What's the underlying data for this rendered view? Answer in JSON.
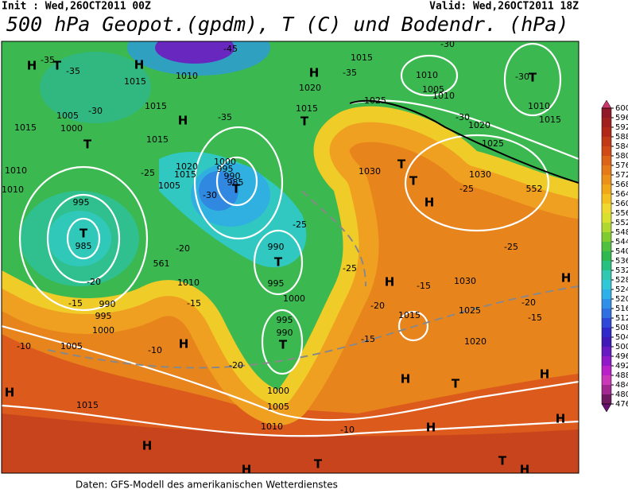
{
  "header": {
    "init": "Init : Wed,26OCT2011 00Z",
    "valid": "Valid: Wed,26OCT2011 18Z",
    "title": "500 hPa Geopot.(gpdm), T (C) und Bodendr. (hPa)"
  },
  "footer": "Daten: GFS-Modell des amerikanischen Wetterdienstes",
  "colorbar": {
    "ticks": [
      600,
      596,
      592,
      588,
      584,
      580,
      576,
      572,
      568,
      564,
      560,
      556,
      552,
      548,
      544,
      540,
      536,
      532,
      528,
      524,
      520,
      516,
      512,
      508,
      504,
      500,
      496,
      492,
      488,
      484,
      480,
      476
    ],
    "colors": [
      "#901828",
      "#a02020",
      "#b02818",
      "#c03a18",
      "#d04a18",
      "#dc6418",
      "#e47a18",
      "#eb9018",
      "#f0a818",
      "#f3c020",
      "#f0d830",
      "#d8e030",
      "#b0d830",
      "#80cc30",
      "#50c040",
      "#30b850",
      "#28c080",
      "#30c8b0",
      "#30c8d8",
      "#30b0e8",
      "#3090e8",
      "#3070e0",
      "#3048d8",
      "#3028c8",
      "#4018b8",
      "#6818c0",
      "#9018c8",
      "#b820c8",
      "#c838b8",
      "#a02890",
      "#701860"
    ]
  },
  "map_labels": [
    "H",
    "T",
    "-35",
    "-35",
    "H",
    "1015",
    "1010",
    "-45",
    "H",
    "1015",
    "1020",
    "-35",
    "1010",
    "1005",
    "1010",
    "-30",
    "T",
    "-30",
    "1010",
    "1015",
    "1025",
    "1015",
    "1015",
    "1005",
    "1000",
    "T",
    "-30",
    "1015",
    "1015",
    "H",
    "-35",
    "T",
    "-30",
    "1020",
    "1025",
    "1030",
    "T",
    "1030",
    "-25",
    "552",
    "1010",
    "1010",
    "995",
    "T",
    "985",
    "1020",
    "1015",
    "1005",
    "-25",
    "1000",
    "995",
    "990",
    "985",
    "T",
    "-30",
    "-25",
    "990",
    "T",
    "995",
    "-25",
    "T",
    "H",
    "1030",
    "-25",
    "H",
    "-15",
    "1015",
    "1025",
    "1020",
    "-20",
    "-15",
    "H",
    "-20",
    "H",
    "-15",
    "1010",
    "-20",
    "561",
    "-20",
    "-15",
    "990",
    "995",
    "1000",
    "1005",
    "-10",
    "-10",
    "1000",
    "995",
    "990",
    "T",
    "-20",
    "1000",
    "1005",
    "1010",
    "-15",
    "H",
    "T",
    "H",
    "H",
    "H",
    "H",
    "1015",
    "H",
    "-10",
    "H",
    "T",
    "T",
    "H"
  ]
}
